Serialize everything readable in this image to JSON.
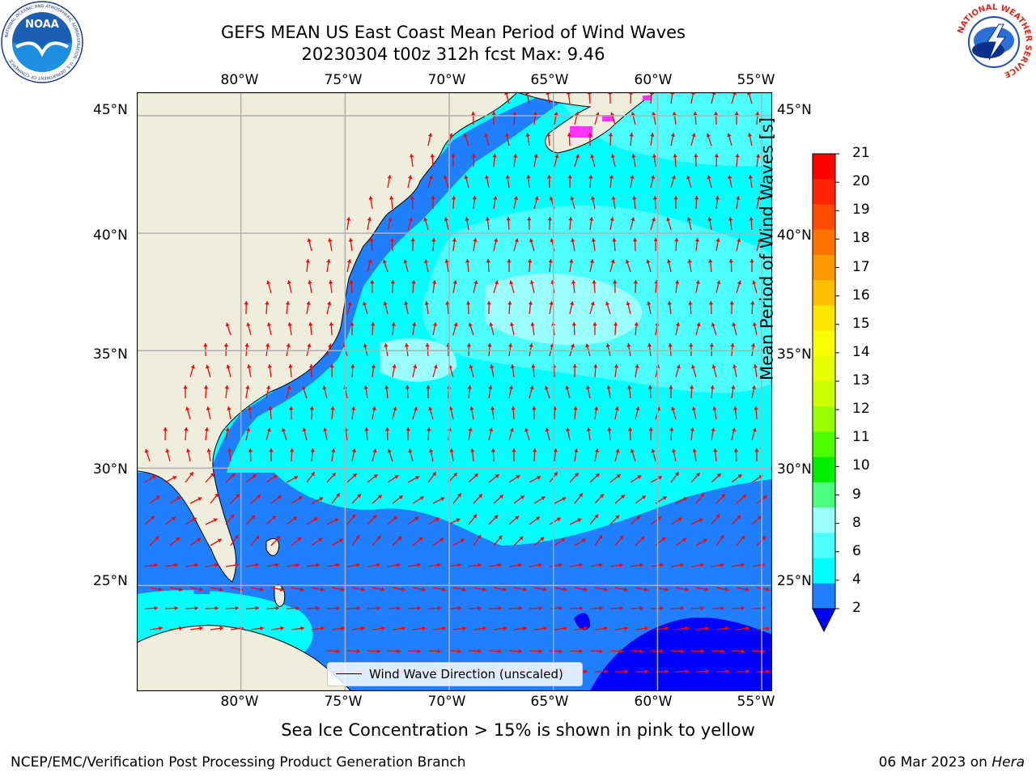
{
  "title": {
    "line1": "GEFS MEAN US East Coast Mean Period of Wind Waves",
    "line2": "20230304 t00z 312h fcst   Max: 9.46"
  },
  "map": {
    "lon_ticks": [
      "80°W",
      "75°W",
      "70°W",
      "65°W",
      "60°W",
      "55°W"
    ],
    "lat_ticks": [
      "45°N",
      "40°N",
      "35°N",
      "30°N",
      "25°N"
    ],
    "lon_range": [
      -85,
      -54.5
    ],
    "lat_range": [
      20.5,
      46
    ],
    "legend_label": "Wind Wave Direction (unscaled)",
    "colors": {
      "land": "#efeedc",
      "ocean_base": "#00ffff",
      "period_2_4": "#1f7fff",
      "period_6_8": "#4cffff",
      "period_8_9": "#99ffff",
      "below_2": "#0000ff",
      "arrow": "#ff0000",
      "sea_ice": "#ff33ff",
      "grid": "#b0b0b0"
    },
    "map_type": "filled contour with vector arrows",
    "grid": true,
    "legend_position": "bottom-center"
  },
  "colorbar": {
    "label": "Mean Period of Wind Waves [s]",
    "ticks": [
      "21",
      "20",
      "19",
      "18",
      "17",
      "16",
      "15",
      "14",
      "13",
      "12",
      "11",
      "10",
      "9",
      "8",
      "6",
      "4",
      "2"
    ],
    "colors": [
      "#ff0000",
      "#ff2600",
      "#ff4c00",
      "#ff7300",
      "#ff9900",
      "#ffbf00",
      "#ffe600",
      "#fcff00",
      "#e6ff00",
      "#ccff00",
      "#99ff00",
      "#4cff00",
      "#00ee00",
      "#4cff7f",
      "#99ffff",
      "#4cffff",
      "#00ffff",
      "#1f7fff"
    ],
    "extend_min_color": "#0000ff"
  },
  "subtitle": "Sea Ice Concentration > 15% is shown in pink to yellow",
  "footer": {
    "left": "NCEP/EMC/Verification Post Processing Product Generation Branch",
    "right_prefix": "06 Mar 2023 on ",
    "right_host": "Hera"
  },
  "logos": {
    "noaa_text": "NOAA",
    "noaa_ring_text": "NATIONAL OCEANIC AND ATMOSPHERIC ADMINISTRATION · U.S. DEPARTMENT OF COMMERCE",
    "nws_ring_text": "NATIONAL WEATHER SERVICE"
  }
}
